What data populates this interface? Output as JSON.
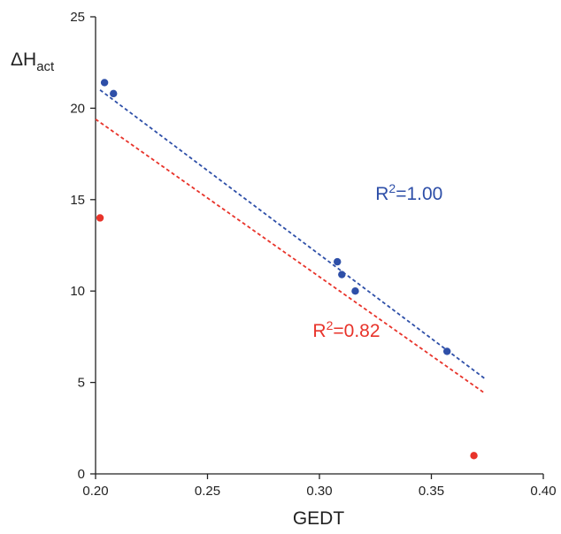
{
  "chart_data": {
    "type": "scatter",
    "xlabel": "GEDT",
    "ylabel": {
      "main": "ΔH",
      "sub": "act"
    },
    "xlim": [
      0.2,
      0.4
    ],
    "ylim": [
      0,
      25
    ],
    "x_ticks": [
      0.2,
      0.25,
      0.3,
      0.35,
      0.4
    ],
    "x_tick_labels": [
      "0.20",
      "0.25",
      "0.30",
      "0.35",
      "0.40"
    ],
    "y_ticks": [
      0,
      5,
      10,
      15,
      20,
      25
    ],
    "y_tick_labels": [
      "0",
      "5",
      "10",
      "15",
      "20",
      "25"
    ],
    "grid": false,
    "series": [
      {
        "color": "#2e4fa8",
        "points": [
          {
            "x": 0.204,
            "y": 21.4
          },
          {
            "x": 0.208,
            "y": 20.8
          },
          {
            "x": 0.308,
            "y": 11.6
          },
          {
            "x": 0.31,
            "y": 10.9
          },
          {
            "x": 0.316,
            "y": 10.0
          },
          {
            "x": 0.357,
            "y": 6.7
          }
        ],
        "fit_line": {
          "x": [
            0.202,
            0.374
          ],
          "y": [
            21.0,
            5.2
          ],
          "style": "dashed"
        },
        "annotation": {
          "pre": "R",
          "sup": "2",
          "post": "=1.00",
          "x": 0.325,
          "y": 15.0
        }
      },
      {
        "color": "#e8332a",
        "points": [
          {
            "x": 0.202,
            "y": 14.0
          },
          {
            "x": 0.369,
            "y": 1.0
          }
        ],
        "fit_line": {
          "x": [
            0.2,
            0.374
          ],
          "y": [
            19.4,
            4.4
          ],
          "style": "dashed"
        },
        "annotation": {
          "pre": "R",
          "sup": "2",
          "post": "=0.82",
          "x": 0.297,
          "y": 7.5
        }
      }
    ]
  }
}
